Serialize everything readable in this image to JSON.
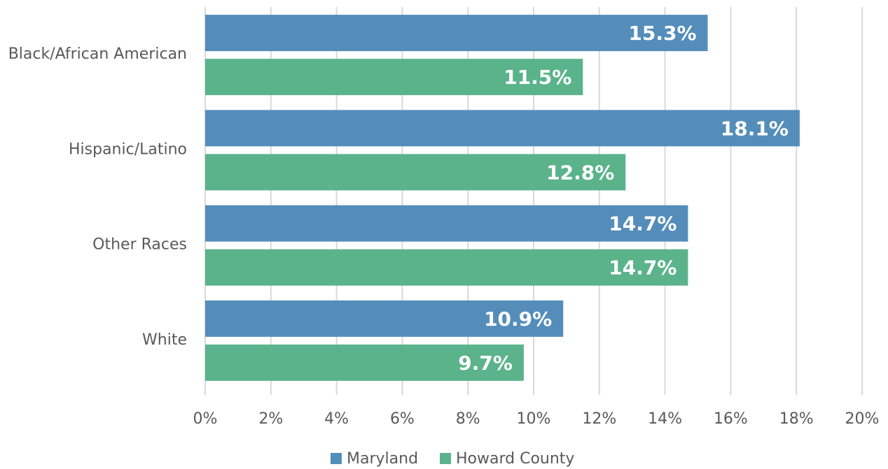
{
  "chart_data": {
    "type": "bar",
    "orientation": "horizontal",
    "categories": [
      "Black/African American",
      "Hispanic/Latino",
      "Other Races",
      "White"
    ],
    "series": [
      {
        "name": "Maryland",
        "color": "#548dba",
        "values": [
          15.3,
          18.1,
          14.7,
          10.9
        ],
        "value_labels": [
          "15.3%",
          "18.1%",
          "14.7%",
          "10.9%"
        ]
      },
      {
        "name": "Howard County",
        "color": "#5bb38b",
        "values": [
          11.5,
          12.8,
          14.7,
          9.7
        ],
        "value_labels": [
          "11.5%",
          "12.8%",
          "14.7%",
          "9.7%"
        ]
      }
    ],
    "xlim": [
      0,
      20
    ],
    "xticks": [
      {
        "value": 0,
        "label": "0%"
      },
      {
        "value": 2,
        "label": "2%"
      },
      {
        "value": 4,
        "label": "4%"
      },
      {
        "value": 6,
        "label": "6%"
      },
      {
        "value": 8,
        "label": "8%"
      },
      {
        "value": 10,
        "label": "10%"
      },
      {
        "value": 12,
        "label": "12%"
      },
      {
        "value": 14,
        "label": "14%"
      },
      {
        "value": 16,
        "label": "16%"
      },
      {
        "value": 18,
        "label": "18%"
      },
      {
        "value": 20,
        "label": "20%"
      }
    ],
    "grid": true,
    "legend": "bottom"
  }
}
